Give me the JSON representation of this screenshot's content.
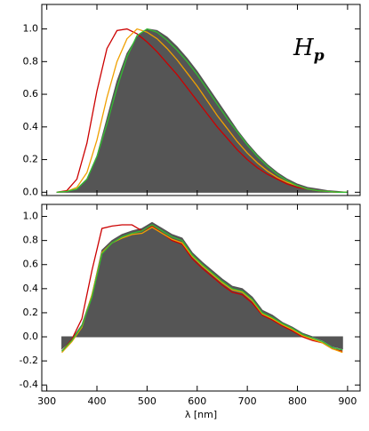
{
  "chart_data": [
    {
      "type": "area-line",
      "annotation": "H",
      "annotation_subscript": "p",
      "x": [
        320,
        340,
        360,
        380,
        400,
        420,
        440,
        460,
        480,
        500,
        520,
        540,
        560,
        580,
        600,
        620,
        640,
        660,
        680,
        700,
        720,
        740,
        760,
        780,
        800,
        820,
        840,
        860,
        880,
        900
      ],
      "series": [
        {
          "color": "#555555",
          "fill": true,
          "values": [
            0,
            0,
            0.02,
            0.08,
            0.22,
            0.45,
            0.68,
            0.85,
            0.95,
            1.0,
            0.99,
            0.95,
            0.89,
            0.82,
            0.74,
            0.65,
            0.56,
            0.47,
            0.38,
            0.3,
            0.23,
            0.17,
            0.12,
            0.08,
            0.05,
            0.03,
            0.02,
            0.01,
            0.005,
            0
          ]
        },
        {
          "color": "#cc0000",
          "values": [
            0,
            0.01,
            0.08,
            0.3,
            0.62,
            0.88,
            0.99,
            1.0,
            0.97,
            0.92,
            0.86,
            0.79,
            0.72,
            0.64,
            0.56,
            0.48,
            0.4,
            0.33,
            0.26,
            0.2,
            0.15,
            0.11,
            0.08,
            0.05,
            0.03,
            0.02,
            0.01,
            0.005,
            0,
            0
          ]
        },
        {
          "color": "#f0a000",
          "values": [
            0,
            0.005,
            0.03,
            0.12,
            0.32,
            0.58,
            0.8,
            0.94,
            1.0,
            0.98,
            0.94,
            0.88,
            0.81,
            0.73,
            0.65,
            0.56,
            0.47,
            0.39,
            0.31,
            0.24,
            0.18,
            0.13,
            0.09,
            0.06,
            0.04,
            0.02,
            0.01,
            0.005,
            0,
            0
          ]
        },
        {
          "color": "#33bb33",
          "values": [
            0,
            0.005,
            0.02,
            0.08,
            0.22,
            0.42,
            0.64,
            0.83,
            0.96,
            1.0,
            0.98,
            0.93,
            0.87,
            0.8,
            0.72,
            0.63,
            0.54,
            0.45,
            0.37,
            0.29,
            0.22,
            0.16,
            0.11,
            0.07,
            0.04,
            0.02,
            0.01,
            0.005,
            0,
            0
          ]
        }
      ],
      "xlim": [
        290,
        925
      ],
      "xticks": [
        300,
        400,
        500,
        600,
        700,
        800,
        900
      ],
      "ylim": [
        -0.02,
        1.15
      ],
      "yticks": [
        {
          "value": 0,
          "label": "0.0"
        },
        0.2,
        0.4,
        0.6,
        0.8,
        {
          "value": 1,
          "label": "1.0"
        }
      ]
    },
    {
      "type": "area-line",
      "xlabel": "λ [nm]",
      "x": [
        330,
        350,
        370,
        390,
        410,
        430,
        450,
        470,
        490,
        510,
        530,
        550,
        570,
        590,
        610,
        630,
        650,
        670,
        690,
        710,
        730,
        750,
        770,
        790,
        810,
        830,
        850,
        870,
        890
      ],
      "series": [
        {
          "color": "#555555",
          "fill": true,
          "values": [
            -0.1,
            -0.02,
            0.1,
            0.35,
            0.72,
            0.8,
            0.85,
            0.88,
            0.9,
            0.95,
            0.9,
            0.85,
            0.82,
            0.7,
            0.62,
            0.55,
            0.48,
            0.42,
            0.4,
            0.33,
            0.22,
            0.18,
            0.12,
            0.08,
            0.03,
            0,
            -0.03,
            -0.08,
            -0.1
          ]
        },
        {
          "color": "#cc0000",
          "values": [
            -0.12,
            -0.02,
            0.15,
            0.55,
            0.9,
            0.92,
            0.93,
            0.93,
            0.88,
            0.92,
            0.86,
            0.8,
            0.77,
            0.65,
            0.57,
            0.5,
            0.43,
            0.37,
            0.35,
            0.28,
            0.18,
            0.14,
            0.09,
            0.05,
            0,
            -0.03,
            -0.05,
            -0.1,
            -0.12
          ]
        },
        {
          "color": "#f0a000",
          "values": [
            -0.13,
            -0.04,
            0.08,
            0.35,
            0.7,
            0.78,
            0.82,
            0.85,
            0.86,
            0.91,
            0.86,
            0.81,
            0.78,
            0.67,
            0.59,
            0.52,
            0.45,
            0.39,
            0.37,
            0.3,
            0.19,
            0.15,
            0.1,
            0.06,
            0.01,
            -0.02,
            -0.05,
            -0.1,
            -0.13
          ]
        },
        {
          "color": "#33bb33",
          "values": [
            -0.12,
            -0.03,
            0.09,
            0.33,
            0.69,
            0.78,
            0.83,
            0.86,
            0.88,
            0.93,
            0.88,
            0.83,
            0.8,
            0.68,
            0.6,
            0.53,
            0.46,
            0.4,
            0.38,
            0.31,
            0.2,
            0.16,
            0.11,
            0.07,
            0.02,
            -0.01,
            -0.04,
            -0.09,
            -0.11
          ]
        }
      ],
      "xlim": [
        290,
        925
      ],
      "xticks": [
        300,
        400,
        500,
        600,
        700,
        800,
        900
      ],
      "ylim": [
        -0.45,
        1.1
      ],
      "yticks": [
        -0.4,
        -0.2,
        {
          "value": 0,
          "label": "0.0"
        },
        0.2,
        0.4,
        0.6,
        0.8,
        {
          "value": 1,
          "label": "1.0"
        }
      ]
    }
  ]
}
